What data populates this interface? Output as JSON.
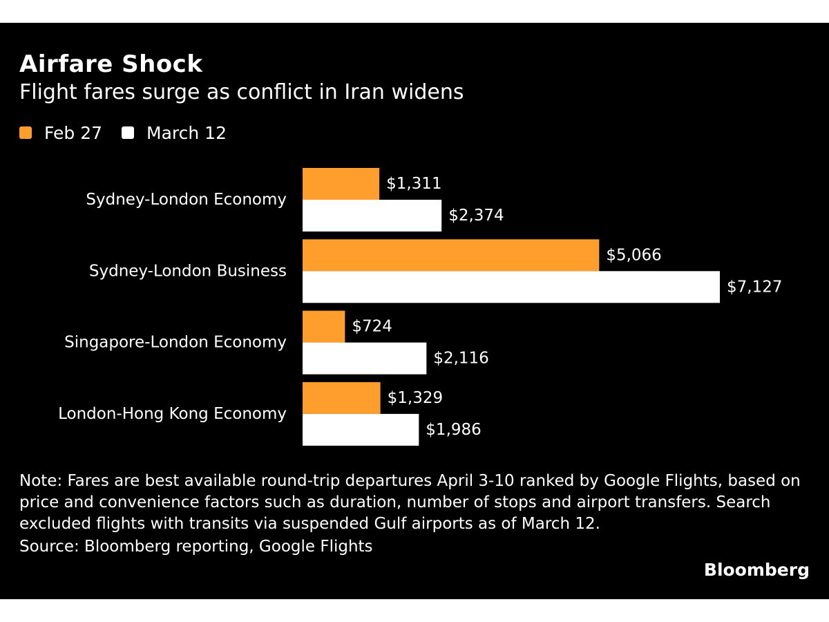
{
  "chart_data": {
    "type": "bar",
    "orientation": "horizontal",
    "title": "Airfare Shock",
    "subtitle": "Flight fares surge as conflict in Iran widens",
    "categories": [
      "Sydney-London Economy",
      "Sydney-London Business",
      "Singapore-London Economy",
      "London-Hong Kong Economy"
    ],
    "series": [
      {
        "name": "Feb 27",
        "color": "#ff9e2c",
        "values": [
          1311,
          5066,
          724,
          1329
        ],
        "labels": [
          "$1,311",
          "$5,066",
          "$724",
          "$1,329"
        ]
      },
      {
        "name": "March 12",
        "color": "#ffffff",
        "values": [
          2374,
          7127,
          2116,
          1986
        ],
        "labels": [
          "$2,374",
          "$7,127",
          "$2,116",
          "$1,986"
        ]
      }
    ],
    "xlim": [
      0,
      7127
    ],
    "xlabel": "",
    "ylabel": "",
    "grid": false,
    "legend": "top-left"
  },
  "note": "Note: Fares are best available round-trip departures April 3-10 ranked by Google Flights, based on price and convenience factors such as duration, number of stops and airport transfers. Search excluded flights with transits via suspended Gulf airports as of March 12.",
  "source": "Source: Bloomberg reporting, Google Flights",
  "brand": "Bloomberg",
  "colors": {
    "background": "#000000",
    "text": "#ffffff",
    "accent": "#ff9e2c"
  }
}
